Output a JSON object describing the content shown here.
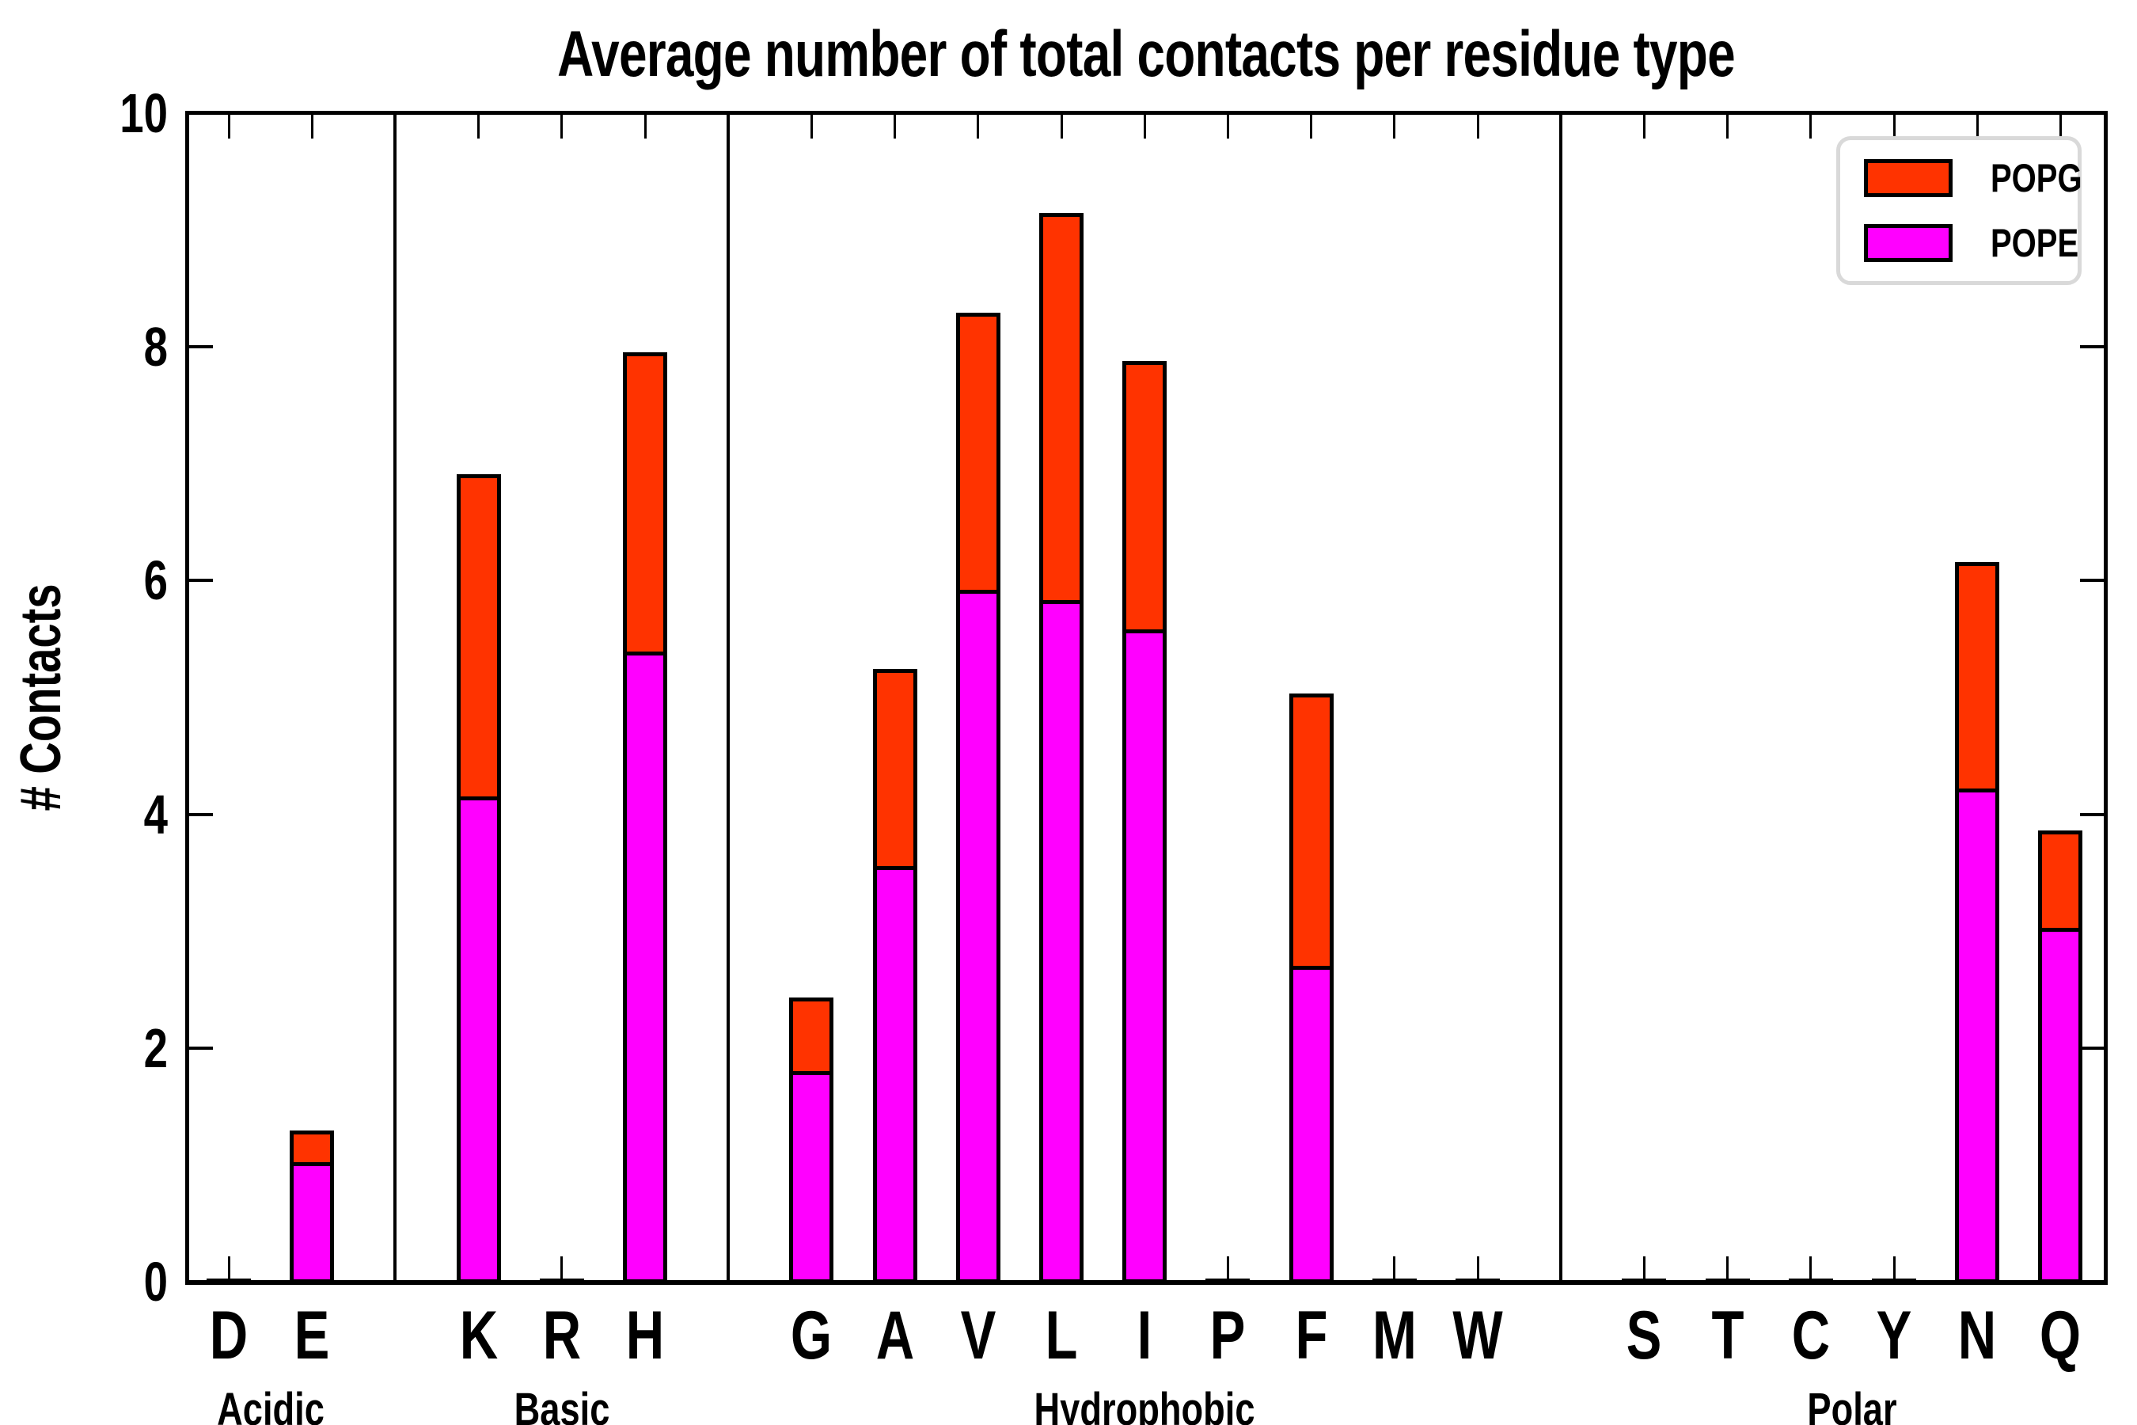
{
  "title": "Average number of total contacts per residue type",
  "ylabel": "# Contacts",
  "legend": {
    "popg_label": "POPG",
    "pope_label": "POPE"
  },
  "colors": {
    "popg": "#FF3300",
    "pope": "#FF00FF",
    "legend_border": "#D9D9D9",
    "axis": "#000000"
  },
  "yticks": [
    "0",
    "2",
    "4",
    "6",
    "8",
    "10"
  ],
  "chart_data": {
    "type": "bar",
    "stacked": true,
    "title": "Average number of total contacts per residue type",
    "xlabel": "",
    "ylabel": "# Contacts",
    "ylim": [
      0,
      10
    ],
    "grid": false,
    "legend_position": "upper right",
    "series_bottom_to_top": [
      "POPE",
      "POPG"
    ],
    "groups": [
      {
        "label": "Acidic",
        "residues": [
          {
            "code": "D",
            "POPE": 0.02,
            "POPG": 0.01
          },
          {
            "code": "E",
            "POPE": 1.02,
            "POPG": 0.27
          }
        ]
      },
      {
        "label": "Basic",
        "residues": [
          {
            "code": "K",
            "POPE": 4.15,
            "POPG": 2.76
          },
          {
            "code": "R",
            "POPE": 0.02,
            "POPG": 0.01
          },
          {
            "code": "H",
            "POPE": 5.39,
            "POPG": 2.56
          }
        ]
      },
      {
        "label": "Hydrophobic",
        "residues": [
          {
            "code": "G",
            "POPE": 1.8,
            "POPG": 0.63
          },
          {
            "code": "A",
            "POPE": 3.56,
            "POPG": 1.69
          },
          {
            "code": "V",
            "POPE": 5.92,
            "POPG": 2.37
          },
          {
            "code": "L",
            "POPE": 5.83,
            "POPG": 3.31
          },
          {
            "code": "I",
            "POPE": 5.58,
            "POPG": 2.3
          },
          {
            "code": "P",
            "POPE": 0.02,
            "POPG": 0.01
          },
          {
            "code": "F",
            "POPE": 2.7,
            "POPG": 2.33
          },
          {
            "code": "M",
            "POPE": 0.02,
            "POPG": 0.01
          },
          {
            "code": "W",
            "POPE": 0.02,
            "POPG": 0.01
          }
        ]
      },
      {
        "label": "Polar",
        "residues": [
          {
            "code": "S",
            "POPE": 0.02,
            "POPG": 0.01
          },
          {
            "code": "T",
            "POPE": 0.02,
            "POPG": 0.01
          },
          {
            "code": "C",
            "POPE": 0.02,
            "POPG": 0.01
          },
          {
            "code": "Y",
            "POPE": 0.02,
            "POPG": 0.01
          },
          {
            "code": "N",
            "POPE": 4.22,
            "POPG": 1.94
          },
          {
            "code": "Q",
            "POPE": 3.03,
            "POPG": 0.83
          }
        ]
      }
    ]
  }
}
